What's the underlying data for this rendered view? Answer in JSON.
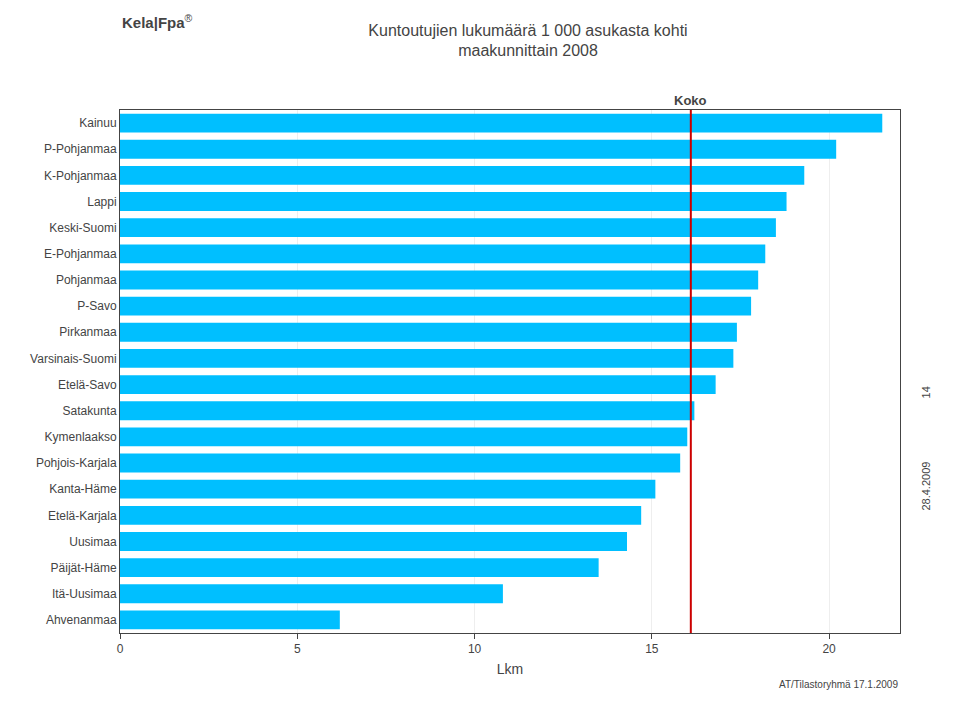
{
  "chart_data": {
    "type": "bar",
    "orientation": "horizontal",
    "title": "Kuntoutujien lukumäärä 1 000 asukasta kohti",
    "subtitle": "maakunnittain 2008",
    "categories": [
      "Kainuu",
      "P-Pohjanmaa",
      "K-Pohjanmaa",
      "Lappi",
      "Keski-Suomi",
      "E-Pohjanmaa",
      "Pohjanmaa",
      "P-Savo",
      "Pirkanmaa",
      "Varsinais-Suomi",
      "Etelä-Savo",
      "Satakunta",
      "Kymenlaakso",
      "Pohjois-Karjala",
      "Kanta-Häme",
      "Etelä-Karjala",
      "Uusimaa",
      "Päijät-Häme",
      "Itä-Uusimaa",
      "Ahvenanmaa"
    ],
    "values": [
      21.5,
      20.2,
      19.3,
      18.8,
      18.5,
      18.2,
      18.0,
      17.8,
      17.4,
      17.3,
      16.8,
      16.2,
      16.0,
      15.8,
      15.1,
      14.7,
      14.3,
      13.5,
      10.8,
      6.2
    ],
    "color": "#00BFFF",
    "xlabel": "Lkm",
    "xlim": [
      0,
      22
    ],
    "xticks": [
      0,
      5,
      10,
      15,
      20
    ],
    "grid": true,
    "reference_lines": [
      {
        "x": 16.1,
        "label": "Koko",
        "color": "#CC0000"
      }
    ],
    "annotations": {
      "logo": "Kela|Fpa",
      "logo_mark": "®",
      "source": "AT/Tilastoryhmä 17.1.2009",
      "page": "14",
      "date": "28.4.2009"
    }
  }
}
